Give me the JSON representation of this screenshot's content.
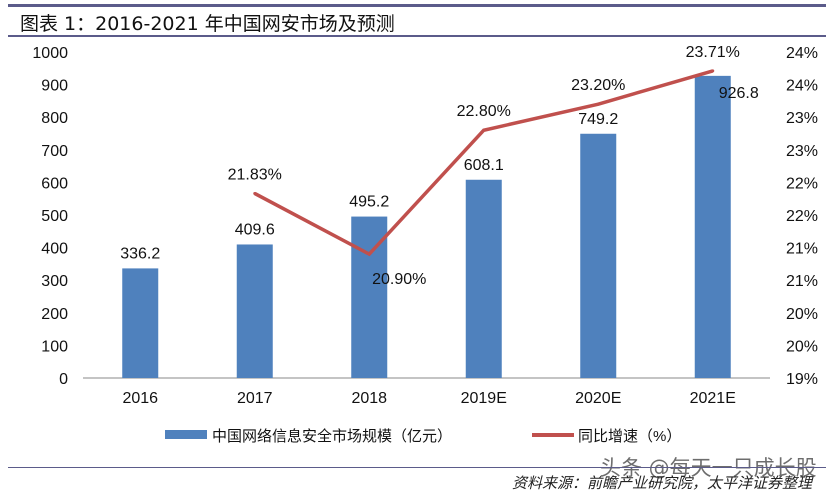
{
  "title": "图表 1：2016-2021 年中国网安市场及预测",
  "source": "资料来源：前瞻产业研究院，太平洋证券整理",
  "watermark": "头条 @每天一只成长股",
  "chart_data": {
    "type": "bar+line",
    "categories": [
      "2016",
      "2017",
      "2018",
      "2019E",
      "2020E",
      "2021E"
    ],
    "series": [
      {
        "name": "中国网络信息安全市场规模（亿元）",
        "type": "bar",
        "axis": "left",
        "color": "#4f81bd",
        "values": [
          336.2,
          409.6,
          495.2,
          608.1,
          749.2,
          926.8
        ],
        "labels": [
          "336.2",
          "409.6",
          "495.2",
          "608.1",
          "749.2",
          "926.8"
        ]
      },
      {
        "name": "同比增速（%）",
        "type": "line",
        "axis": "right",
        "color": "#c0504d",
        "values": [
          null,
          21.83,
          20.9,
          22.8,
          23.2,
          23.71
        ],
        "labels": [
          "",
          "21.83%",
          "20.90%",
          "22.80%",
          "23.20%",
          "23.71%"
        ]
      }
    ],
    "left_axis": {
      "ylim": [
        0,
        1000
      ],
      "ticks": [
        "0",
        "100",
        "200",
        "300",
        "400",
        "500",
        "600",
        "700",
        "800",
        "900",
        "1000"
      ]
    },
    "right_axis": {
      "ylim": [
        19,
        24
      ],
      "ticks": [
        "19%",
        "20%",
        "20%",
        "21%",
        "21%",
        "22%",
        "22%",
        "23%",
        "23%",
        "24%",
        "24%"
      ]
    },
    "grid": false,
    "legend_placement": "bottom"
  }
}
